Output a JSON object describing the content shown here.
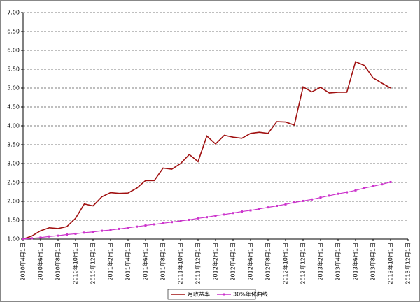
{
  "chart_data": {
    "type": "line",
    "categories": [
      "2010年4月1日",
      null,
      "2010年6月1日",
      null,
      "2010年8月1日",
      null,
      "2010年10月1日",
      null,
      "2010年12月1日",
      null,
      "2011年2月1日",
      null,
      "2011年4月1日",
      null,
      "2011年6月1日",
      null,
      "2011年8月1日",
      null,
      "2011年10月1日",
      null,
      "2011年12月1日",
      null,
      "2012年2月1日",
      null,
      "2012年4月1日",
      null,
      "2012年6月1日",
      null,
      "2012年8月1日",
      null,
      "2012年10月1日",
      null,
      "2012年12月1日",
      null,
      "2013年2月1日",
      null,
      "2013年4月1日",
      null,
      "2013年6月1日",
      null,
      "2013年8月1日",
      null,
      "2013年10月1日",
      null,
      "2013年12月1日"
    ],
    "series": [
      {
        "name": "月收益率",
        "color": "#a01010",
        "values": [
          1.0,
          1.08,
          1.22,
          1.3,
          1.28,
          1.33,
          1.55,
          1.93,
          1.88,
          2.12,
          2.23,
          2.21,
          2.22,
          2.35,
          2.55,
          2.55,
          2.88,
          2.85,
          3.0,
          3.24,
          3.05,
          3.73,
          3.52,
          3.75,
          3.7,
          3.67,
          3.8,
          3.83,
          3.8,
          4.11,
          4.1,
          4.02,
          5.03,
          4.9,
          5.02,
          4.87,
          4.89,
          4.89,
          5.7,
          5.6,
          5.27,
          5.13,
          5.0,
          null,
          null
        ]
      },
      {
        "name": "30%年化曲线",
        "color": "#cc33cc",
        "values": [
          1.0,
          1.02,
          1.04,
          1.07,
          1.09,
          1.12,
          1.14,
          1.17,
          1.19,
          1.22,
          1.24,
          1.27,
          1.3,
          1.33,
          1.36,
          1.39,
          1.42,
          1.45,
          1.48,
          1.51,
          1.55,
          1.58,
          1.62,
          1.65,
          1.69,
          1.73,
          1.76,
          1.8,
          1.84,
          1.88,
          1.92,
          1.97,
          2.01,
          2.05,
          2.1,
          2.15,
          2.2,
          2.24,
          2.29,
          2.35,
          2.4,
          2.45,
          2.51,
          null,
          null
        ]
      }
    ],
    "ylim": [
      1,
      7
    ],
    "yticks": [
      {
        "value": 1,
        "label": "1.00"
      },
      {
        "value": 1.5,
        "label": "1.50"
      },
      {
        "value": 2,
        "label": "2.00"
      },
      {
        "value": 2.5,
        "label": "2.50"
      },
      {
        "value": 3,
        "label": "3.00"
      },
      {
        "value": 3.5,
        "label": "3.50"
      },
      {
        "value": 4,
        "label": "4.00"
      },
      {
        "value": 4.5,
        "label": "4.50"
      },
      {
        "value": 5,
        "label": "5.00"
      },
      {
        "value": 5.5,
        "label": "5.50"
      },
      {
        "value": 6,
        "label": "6.00"
      },
      {
        "value": 6.5,
        "label": "6.50"
      },
      {
        "value": 7,
        "label": "7.00"
      }
    ],
    "grid": true,
    "legend": "bottom"
  }
}
